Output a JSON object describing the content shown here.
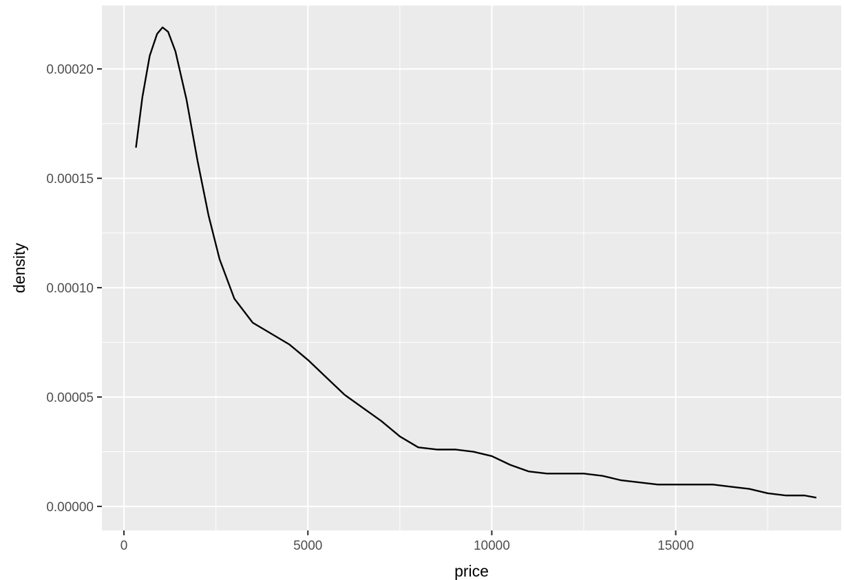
{
  "chart_data": {
    "type": "line",
    "title": "",
    "xlabel": "price",
    "ylabel": "density",
    "xlim": [
      -600,
      19500
    ],
    "ylim": [
      -1.1e-05,
      0.000229
    ],
    "x_ticks": [
      0,
      5000,
      10000,
      15000
    ],
    "x_tick_labels": [
      "0",
      "5000",
      "10000",
      "15000"
    ],
    "y_ticks": [
      0,
      5e-05,
      0.0001,
      0.00015,
      0.0002
    ],
    "y_tick_labels": [
      "0.00000",
      "0.00005",
      "0.00010",
      "0.00015",
      "0.00020"
    ],
    "x_minor": [
      2500,
      7500,
      12500,
      17500
    ],
    "y_minor": [
      2.5e-05,
      7.5e-05,
      0.000125,
      0.000175
    ],
    "grid": true,
    "legend": false,
    "panel_background": "#EBEBEB",
    "line_color": "#000000",
    "series": [
      {
        "x": [
          326,
          500,
          700,
          900,
          1050,
          1200,
          1400,
          1700,
          2000,
          2300,
          2600,
          3000,
          3500,
          4000,
          4500,
          5000,
          5500,
          6000,
          6500,
          7000,
          7500,
          8000,
          8500,
          9000,
          9500,
          10000,
          10500,
          11000,
          11500,
          12000,
          12500,
          13000,
          13500,
          14000,
          14500,
          15000,
          15500,
          16000,
          16500,
          17000,
          17500,
          18000,
          18500,
          18823
        ],
        "y": [
          0.000164,
          0.000187,
          0.000206,
          0.000216,
          0.000219,
          0.000217,
          0.000208,
          0.000186,
          0.000158,
          0.000133,
          0.000113,
          9.5e-05,
          8.4e-05,
          7.9e-05,
          7.4e-05,
          6.7e-05,
          5.9e-05,
          5.1e-05,
          4.5e-05,
          3.9e-05,
          3.2e-05,
          2.7e-05,
          2.6e-05,
          2.6e-05,
          2.5e-05,
          2.3e-05,
          1.9e-05,
          1.6e-05,
          1.5e-05,
          1.5e-05,
          1.5e-05,
          1.4e-05,
          1.2e-05,
          1.1e-05,
          1e-05,
          1e-05,
          1e-05,
          1e-05,
          9e-06,
          8e-06,
          6e-06,
          5e-06,
          5e-06,
          4e-06
        ]
      }
    ]
  }
}
